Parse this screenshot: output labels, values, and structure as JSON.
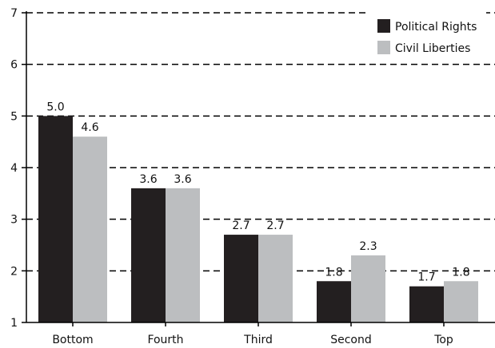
{
  "chart_data": {
    "type": "bar",
    "categories": [
      "Bottom",
      "Fourth",
      "Third",
      "Second",
      "Top"
    ],
    "series": [
      {
        "name": "Political Rights",
        "values": [
          5.0,
          3.6,
          2.7,
          1.8,
          1.7
        ],
        "labels": [
          "5.0",
          "3.6",
          "2.7",
          "1.8",
          "1.7"
        ],
        "color": "#231f20"
      },
      {
        "name": "Civil Liberties",
        "values": [
          4.6,
          3.6,
          2.7,
          2.3,
          1.8
        ],
        "labels": [
          "4.6",
          "3.6",
          "2.7",
          "2.3",
          "1.8"
        ],
        "color": "#bcbec0"
      }
    ],
    "ylim": [
      1,
      7
    ],
    "yticks": [
      "1",
      "2",
      "3",
      "4",
      "5",
      "6",
      "7"
    ],
    "grid": true,
    "grid_style": "dashed",
    "legend_position": "top-right",
    "title": "",
    "xlabel": "",
    "ylabel": ""
  }
}
